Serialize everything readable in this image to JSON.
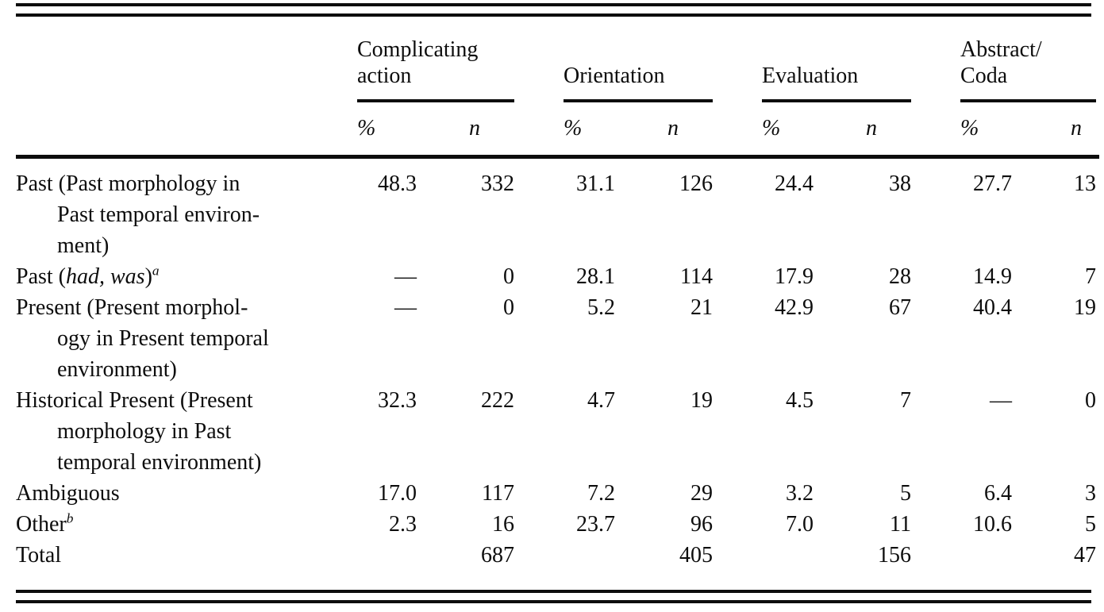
{
  "table": {
    "groups": [
      {
        "label": "Complicating\naction",
        "percent_header": "%",
        "n_header": "n"
      },
      {
        "label": "Orientation",
        "percent_header": "%",
        "n_header": "n"
      },
      {
        "label": "Evaluation",
        "percent_header": "%",
        "n_header": "n"
      },
      {
        "label": "Abstract/\nCoda",
        "percent_header": "%",
        "n_header": "n"
      }
    ],
    "rows": [
      {
        "label_parts": [
          {
            "text": "Past (Past morphology in\nPast temporal environ-\nment)"
          }
        ],
        "values": [
          "48.3",
          "332",
          "31.1",
          "126",
          "24.4",
          "38",
          "27.7",
          "13"
        ]
      },
      {
        "label_parts": [
          {
            "text": "Past ("
          },
          {
            "text": "had, was",
            "italic": true
          },
          {
            "text": ")"
          },
          {
            "text": "a",
            "sup": true,
            "italic": true
          }
        ],
        "values": [
          "—",
          "0",
          "28.1",
          "114",
          "17.9",
          "28",
          "14.9",
          "7"
        ]
      },
      {
        "label_parts": [
          {
            "text": "Present (Present morphol-\nogy in Present temporal\nenvironment)"
          }
        ],
        "values": [
          "—",
          "0",
          "5.2",
          "21",
          "42.9",
          "67",
          "40.4",
          "19"
        ]
      },
      {
        "label_parts": [
          {
            "text": "Historical Present (Present\nmorphology in Past\ntemporal environment)"
          }
        ],
        "values": [
          "32.3",
          "222",
          "4.7",
          "19",
          "4.5",
          "7",
          "—",
          "0"
        ]
      },
      {
        "label_parts": [
          {
            "text": "Ambiguous"
          }
        ],
        "values": [
          "17.0",
          "117",
          "7.2",
          "29",
          "3.2",
          "5",
          "6.4",
          "3"
        ]
      },
      {
        "label_parts": [
          {
            "text": "Other"
          },
          {
            "text": "b",
            "sup": true,
            "italic": true
          }
        ],
        "values": [
          "2.3",
          "16",
          "23.7",
          "96",
          "7.0",
          "11",
          "10.6",
          "5"
        ]
      },
      {
        "label_parts": [
          {
            "text": "Total"
          }
        ],
        "values": [
          "",
          "687",
          "",
          "405",
          "",
          "156",
          "",
          "47"
        ]
      }
    ]
  }
}
